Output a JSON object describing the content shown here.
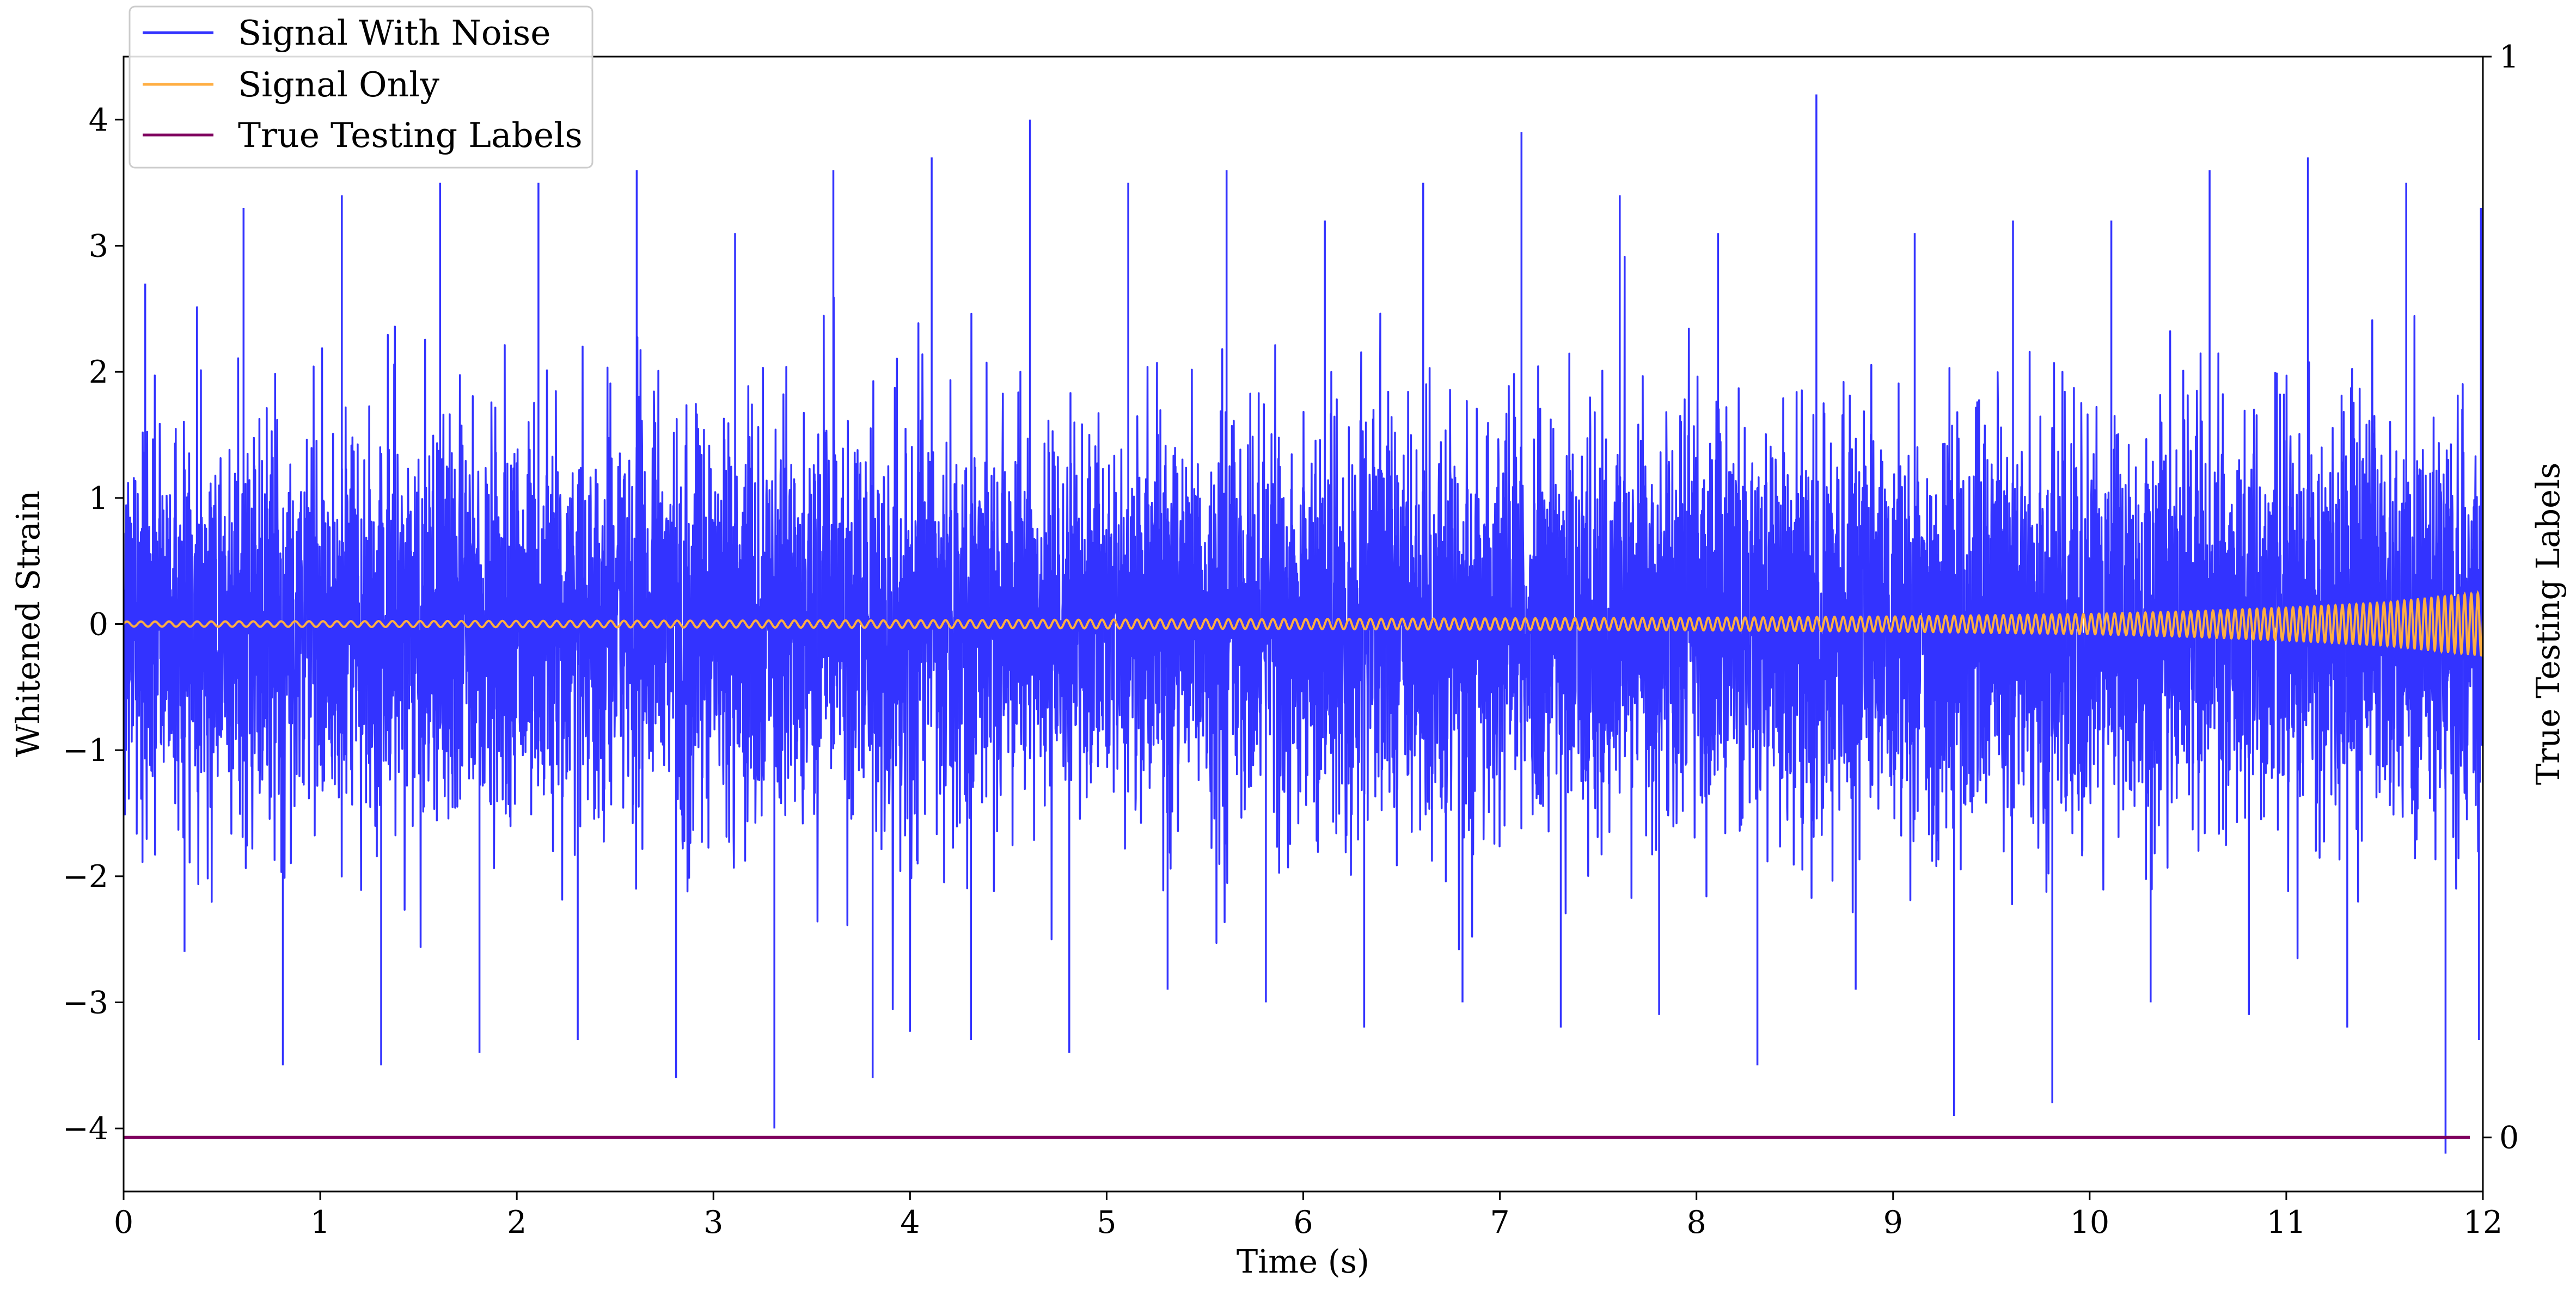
{
  "chart_data": {
    "type": "line",
    "xlabel": "Time (s)",
    "ylabel": "Whitened Strain",
    "y2label": "True Testing Labels",
    "xlim": [
      0,
      12
    ],
    "ylim": [
      -4.5,
      4.5
    ],
    "y2lim": [
      -0.05,
      1
    ],
    "grid": false,
    "legend_position": "top-left",
    "x_ticks": [
      "0",
      "1",
      "2",
      "3",
      "4",
      "5",
      "6",
      "7",
      "8",
      "9",
      "10",
      "11",
      "12"
    ],
    "y_ticks": [
      "−4",
      "−3",
      "−2",
      "−1",
      "0",
      "1",
      "2",
      "3",
      "4"
    ],
    "y2_ticks": [
      "0",
      "1"
    ],
    "series": [
      {
        "name": "Signal With Noise",
        "color": "#3333ff",
        "axis": "left",
        "description_values": {
          "x": [
            0,
            0.5,
            1,
            1.5,
            2,
            2.5,
            3,
            3.5,
            4,
            4.5,
            5,
            5.5,
            6,
            6.5,
            7,
            7.5,
            8,
            8.5,
            9,
            9.5,
            10,
            10.5,
            11,
            11.5,
            12
          ],
          "upper_envelope": [
            2.7,
            3.3,
            3.4,
            3.5,
            3.5,
            3.6,
            3.1,
            3.6,
            3.7,
            4.0,
            3.5,
            3.6,
            3.2,
            3.5,
            3.9,
            3.4,
            3.1,
            4.2,
            3.1,
            3.2,
            3.2,
            3.6,
            3.7,
            3.5,
            3.3
          ],
          "lower_envelope": [
            -2.6,
            -3.5,
            -3.5,
            -3.4,
            -3.3,
            -3.6,
            -4.0,
            -3.6,
            -3.3,
            -3.4,
            -2.9,
            -3.0,
            -3.2,
            -3.0,
            -3.2,
            -3.1,
            -3.5,
            -2.9,
            -3.9,
            -3.8,
            -3.0,
            -3.1,
            -3.2,
            -4.2,
            -3.3
          ]
        }
      },
      {
        "name": "Signal Only",
        "color": "#ffae42",
        "axis": "left",
        "description_values": {
          "x": [
            0,
            2,
            4,
            6,
            8,
            9,
            10,
            10.5,
            11,
            11.5,
            12
          ],
          "amplitude": [
            0.02,
            0.025,
            0.03,
            0.04,
            0.05,
            0.06,
            0.08,
            0.1,
            0.13,
            0.17,
            0.25
          ]
        }
      },
      {
        "name": "True Testing Labels",
        "color": "#800060",
        "axis": "right",
        "x": [
          0,
          12
        ],
        "y": [
          0,
          0
        ]
      }
    ]
  }
}
